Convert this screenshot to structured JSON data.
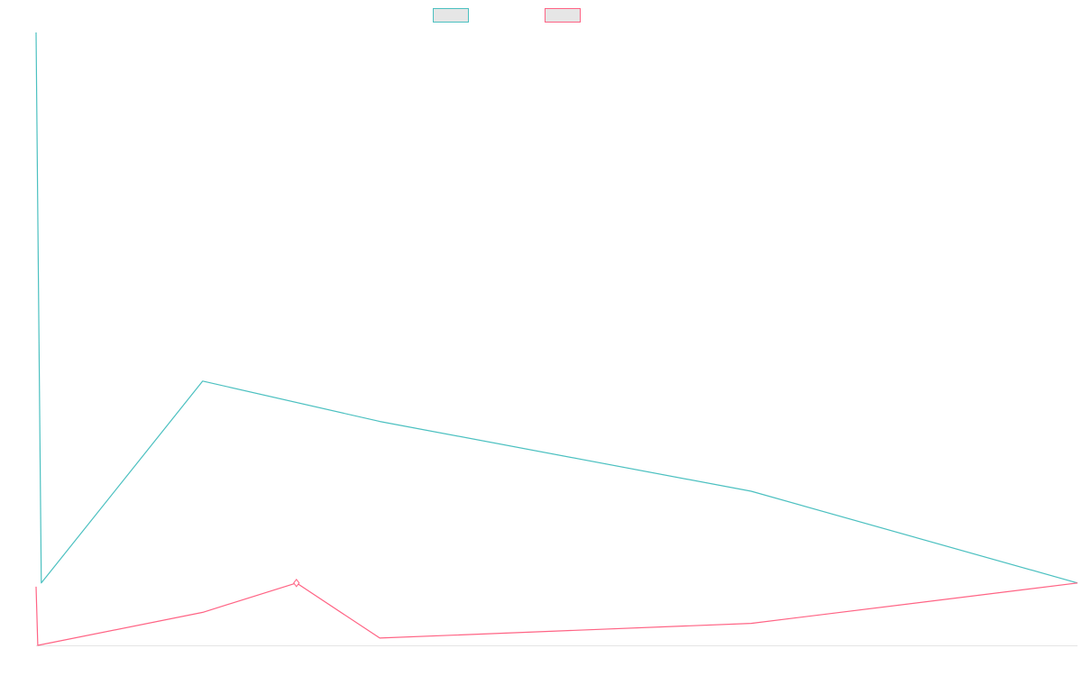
{
  "chart_data": {
    "type": "line",
    "title": "",
    "xlabel": "",
    "ylabel": "",
    "grid": false,
    "legend": "top-center",
    "x_range": [
      0,
      300
    ],
    "ylim": [
      -17,
      150
    ],
    "series": [
      {
        "color": "#4bc0c0",
        "points": [
          [
            0,
            150
          ],
          [
            1.5,
            0
          ],
          [
            48,
            55
          ],
          [
            99,
            44
          ],
          [
            206,
            25
          ],
          [
            300,
            0
          ]
        ]
      },
      {
        "color": "#ff6384",
        "points": [
          [
            0,
            -1
          ],
          [
            0.5,
            -17
          ],
          [
            48,
            -8
          ],
          [
            75,
            0
          ],
          [
            99,
            -15
          ],
          [
            206,
            -11
          ],
          [
            300,
            0
          ]
        ]
      }
    ]
  }
}
